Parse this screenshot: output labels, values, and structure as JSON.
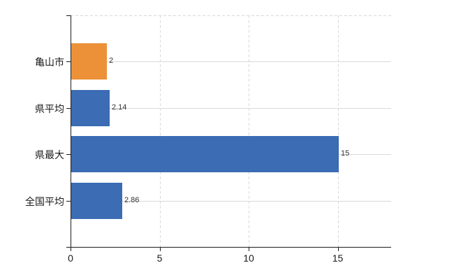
{
  "chart_data": {
    "type": "bar",
    "orientation": "horizontal",
    "categories": [
      "亀山市",
      "県平均",
      "県最大",
      "全国平均"
    ],
    "values": [
      2,
      2.14,
      15,
      2.86
    ],
    "value_labels": [
      "2",
      "2.14",
      "15",
      "2.86"
    ],
    "bar_colors": [
      "#EC9138",
      "#3B6CB4",
      "#3B6CB4",
      "#3B6CB4"
    ],
    "x_ticks": [
      0,
      5,
      10,
      15
    ],
    "x_tick_labels": [
      "0",
      "5",
      "10",
      "15"
    ],
    "xlim": [
      0,
      18
    ],
    "grid": {
      "horizontal": true,
      "vertical": true
    },
    "legend": "none",
    "title": ""
  },
  "colors": {
    "bar_blue": "#3B6CB4",
    "bar_orange": "#EC9138",
    "axis": "#1A1A1A",
    "gridline": "#D9D9D9",
    "category_text": "#1A1A1A",
    "value_text": "#333333",
    "tick_text": "#1A1A1A",
    "background": "#FFFFFF"
  }
}
